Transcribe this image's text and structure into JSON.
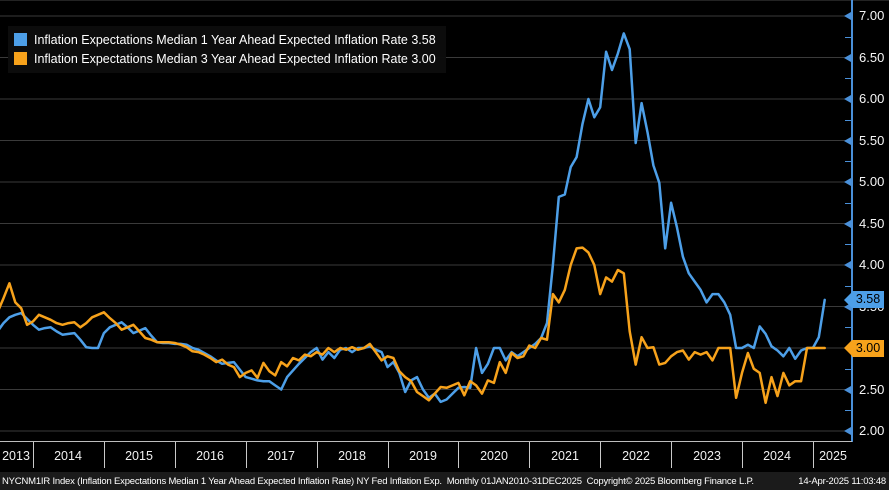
{
  "legend": {
    "items": [
      {
        "label": "Inflation Expectations Median 1 Year Ahead Expected Inflation Rate",
        "value": "3.58",
        "color": "#4d9fe8"
      },
      {
        "label": "Inflation Expectations Median 3 Year Ahead Expected Inflation Rate",
        "value": "3.00",
        "color": "#f7a21b"
      }
    ]
  },
  "y_axis": {
    "min": 2.0,
    "max": 7.0,
    "major_step": 0.5,
    "minor_step": 0.25,
    "labels": [
      "2.00",
      "2.50",
      "3.00",
      "3.50",
      "4.00",
      "4.50",
      "5.00",
      "5.50",
      "6.00",
      "6.50",
      "7.00"
    ],
    "axis_color": "#4a90d9",
    "badges": [
      {
        "value": "3.58",
        "numeric": 3.58,
        "color": "#4d9fe8"
      },
      {
        "value": "3.00",
        "numeric": 3.0,
        "color": "#f7a21b"
      }
    ]
  },
  "x_axis": {
    "years": [
      "2013",
      "2014",
      "2015",
      "2016",
      "2017",
      "2018",
      "2019",
      "2020",
      "2021",
      "2022",
      "2023",
      "2024",
      "2025"
    ]
  },
  "status_bar": {
    "left": "NYCNM1IR Index (Inflation Expectations Median 1 Year Ahead Expected Inflation Rate) NY Fed Inflation Exp.  Monthly 01JAN2010-31DEC2025  Copyright© 2025 Bloomberg Finance L.P.",
    "right": "14-Apr-2025 11:03:48"
  },
  "chart_data": {
    "type": "line",
    "title": "",
    "frequency": "monthly",
    "x_start": "2013-07",
    "x_end": "2025-03",
    "ylim": [
      2.0,
      7.0
    ],
    "ytick_step": 0.5,
    "grid": "horizontal",
    "legend_position": "top-left",
    "background": "#000000",
    "grid_color": "#3a3a3a",
    "series": [
      {
        "name": "Inflation Expectations Median 1 Year Ahead Expected Inflation Rate",
        "color": "#4d9fe8",
        "last_value": 3.58,
        "values": [
          3.2,
          3.3,
          3.37,
          3.4,
          3.42,
          3.35,
          3.28,
          3.22,
          3.24,
          3.25,
          3.2,
          3.16,
          3.17,
          3.18,
          3.1,
          3.01,
          3.0,
          3.0,
          3.18,
          3.25,
          3.28,
          3.31,
          3.25,
          3.18,
          3.21,
          3.24,
          3.15,
          3.07,
          3.06,
          3.06,
          3.05,
          3.05,
          3.04,
          3.0,
          2.98,
          2.94,
          2.9,
          2.85,
          2.81,
          2.82,
          2.83,
          2.74,
          2.65,
          2.63,
          2.61,
          2.6,
          2.6,
          2.55,
          2.5,
          2.65,
          2.73,
          2.81,
          2.88,
          2.95,
          3.0,
          2.86,
          2.95,
          2.88,
          2.98,
          3.0,
          2.95,
          3.0,
          3.0,
          3.02,
          2.98,
          2.95,
          2.77,
          2.83,
          2.7,
          2.47,
          2.61,
          2.65,
          2.5,
          2.4,
          2.45,
          2.35,
          2.38,
          2.45,
          2.52,
          2.53,
          2.52,
          3.0,
          2.7,
          2.81,
          3.0,
          3.0,
          2.85,
          2.95,
          2.9,
          2.95,
          3.0,
          3.05,
          3.12,
          3.3,
          4.0,
          4.82,
          4.85,
          5.18,
          5.3,
          5.7,
          6.0,
          5.78,
          5.9,
          6.57,
          6.35,
          6.55,
          6.79,
          6.6,
          5.47,
          5.95,
          5.6,
          5.2,
          4.99,
          4.2,
          4.75,
          4.45,
          4.1,
          3.9,
          3.8,
          3.7,
          3.55,
          3.65,
          3.65,
          3.55,
          3.4,
          3.0,
          3.0,
          3.04,
          3.0,
          3.26,
          3.17,
          3.02,
          2.97,
          2.9,
          3.0,
          2.87,
          2.97,
          3.0,
          3.0,
          3.13,
          3.58
        ]
      },
      {
        "name": "Inflation Expectations Median 3 Year Ahead Expected Inflation Rate",
        "color": "#f7a21b",
        "last_value": 3.0,
        "values": [
          3.43,
          3.6,
          3.78,
          3.55,
          3.48,
          3.28,
          3.32,
          3.4,
          3.37,
          3.34,
          3.3,
          3.28,
          3.3,
          3.31,
          3.25,
          3.3,
          3.37,
          3.4,
          3.43,
          3.36,
          3.3,
          3.22,
          3.25,
          3.28,
          3.2,
          3.12,
          3.1,
          3.07,
          3.07,
          3.07,
          3.06,
          3.04,
          3.01,
          2.96,
          2.95,
          2.92,
          2.88,
          2.83,
          2.86,
          2.8,
          2.77,
          2.65,
          2.7,
          2.73,
          2.64,
          2.82,
          2.72,
          2.67,
          2.83,
          2.78,
          2.88,
          2.85,
          2.92,
          2.9,
          2.95,
          2.92,
          3.0,
          2.95,
          3.0,
          2.98,
          3.01,
          2.98,
          3.0,
          3.05,
          2.95,
          2.85,
          2.9,
          2.88,
          2.72,
          2.65,
          2.6,
          2.47,
          2.42,
          2.37,
          2.45,
          2.53,
          2.52,
          2.55,
          2.58,
          2.43,
          2.6,
          2.55,
          2.45,
          2.61,
          2.58,
          2.83,
          2.7,
          2.94,
          2.88,
          2.9,
          3.03,
          3.0,
          3.12,
          3.1,
          3.65,
          3.55,
          3.7,
          4.0,
          4.2,
          4.21,
          4.15,
          4.0,
          3.65,
          3.85,
          3.8,
          3.94,
          3.9,
          3.2,
          2.8,
          3.13,
          3.0,
          3.01,
          2.8,
          2.82,
          2.9,
          2.95,
          2.97,
          2.86,
          2.95,
          2.92,
          2.95,
          2.85,
          3.0,
          3.0,
          3.0,
          2.4,
          2.7,
          2.94,
          2.75,
          2.7,
          2.34,
          2.65,
          2.42,
          2.7,
          2.55,
          2.6,
          2.6,
          3.0,
          3.0,
          3.0,
          3.0
        ]
      }
    ]
  }
}
